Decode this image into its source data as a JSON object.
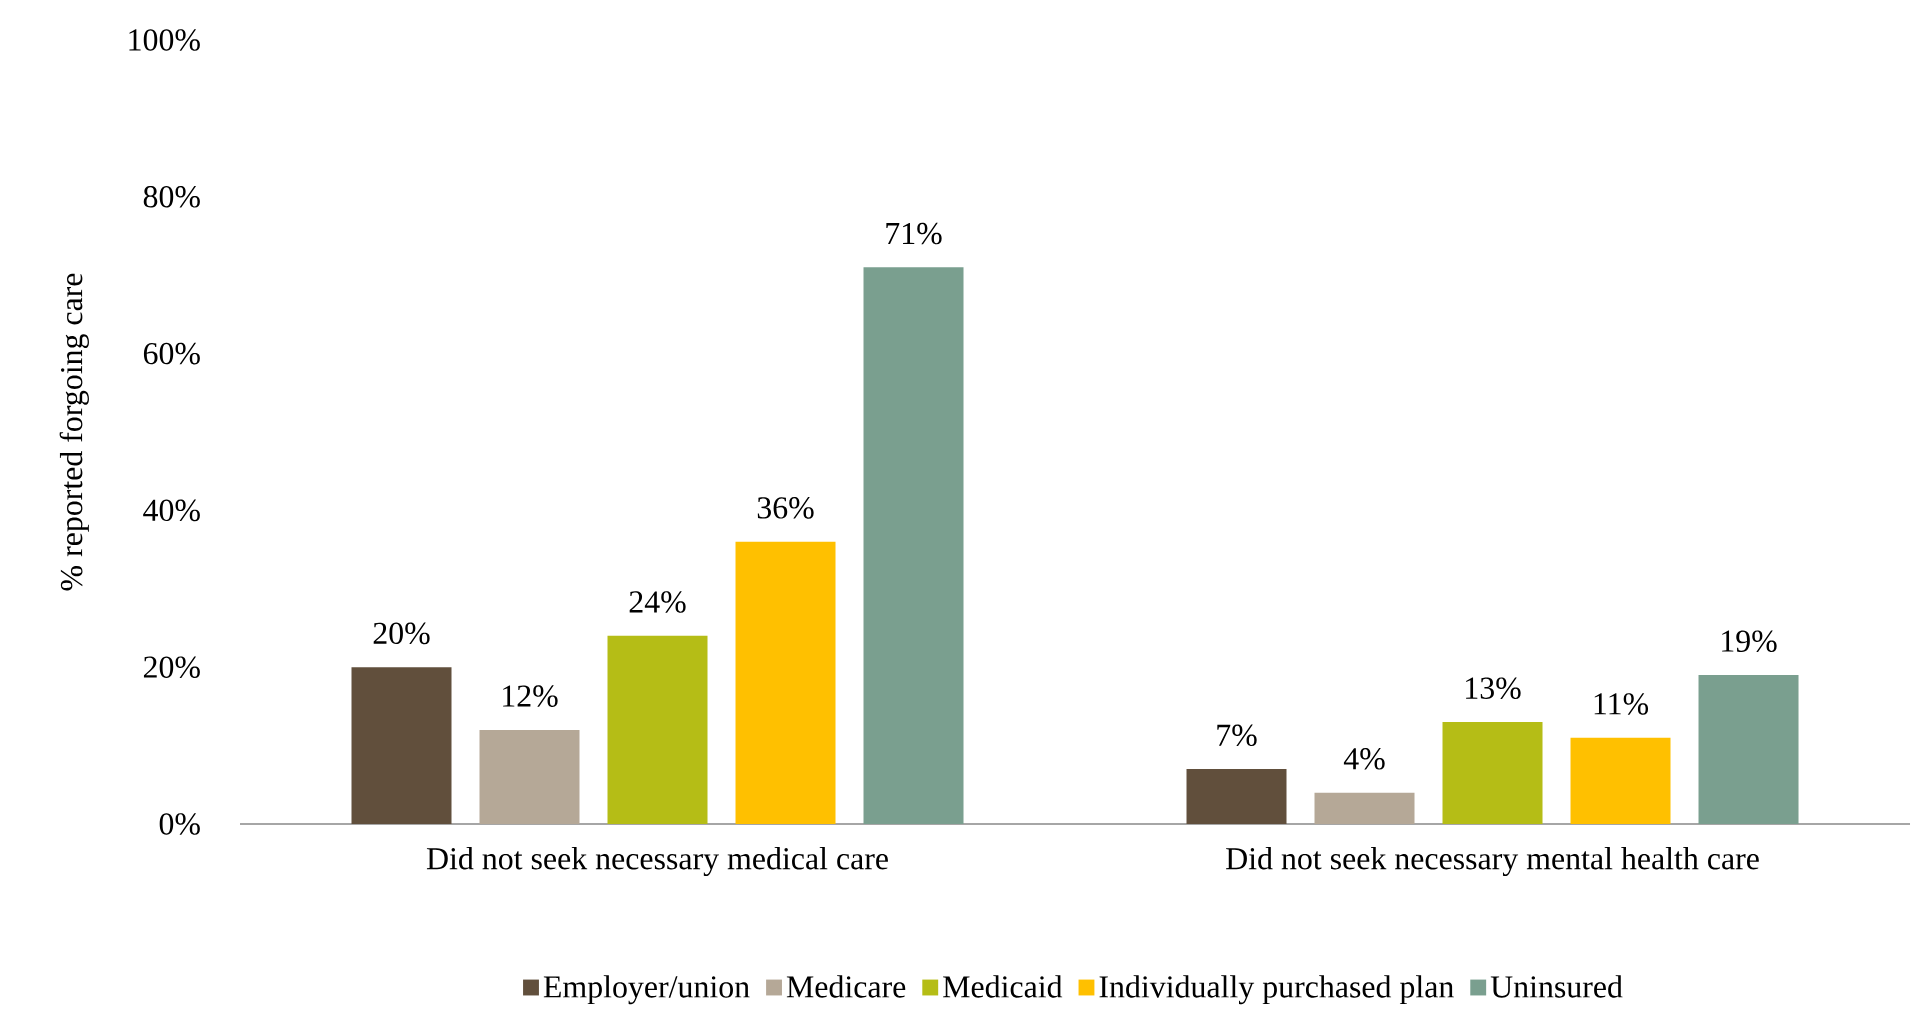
{
  "chart_data": {
    "type": "bar",
    "ylabel": "% reported forgoing care",
    "categories": [
      "Did not seek necessary medical care",
      "Did not seek necessary mental health care"
    ],
    "series": [
      {
        "name": "Employer/union",
        "color": "#614f3c",
        "values": [
          20,
          7
        ],
        "value_labels": [
          "20%",
          "7%"
        ]
      },
      {
        "name": "Medicare",
        "color": "#b5a897",
        "values": [
          12,
          4
        ],
        "value_labels": [
          "12%",
          "4%"
        ]
      },
      {
        "name": "Medicaid",
        "color": "#b5bd16",
        "values": [
          24,
          13
        ],
        "value_labels": [
          "24%",
          "13%"
        ]
      },
      {
        "name": "Individually purchased plan",
        "color": "#ffc000",
        "values": [
          36,
          11
        ],
        "value_labels": [
          "36%",
          "11%"
        ]
      },
      {
        "name": "Uninsured",
        "color": "#7a9f8f",
        "values": [
          71,
          19
        ],
        "value_labels": [
          "71%",
          "19%"
        ]
      }
    ],
    "ylim": [
      0,
      100
    ],
    "yticks": [
      {
        "value": 0,
        "label": "0%"
      },
      {
        "value": 20,
        "label": "20%"
      },
      {
        "value": 40,
        "label": "40%"
      },
      {
        "value": 60,
        "label": "60%"
      },
      {
        "value": 80,
        "label": "80%"
      },
      {
        "value": 100,
        "label": "100%"
      }
    ],
    "legend": "bottom"
  }
}
